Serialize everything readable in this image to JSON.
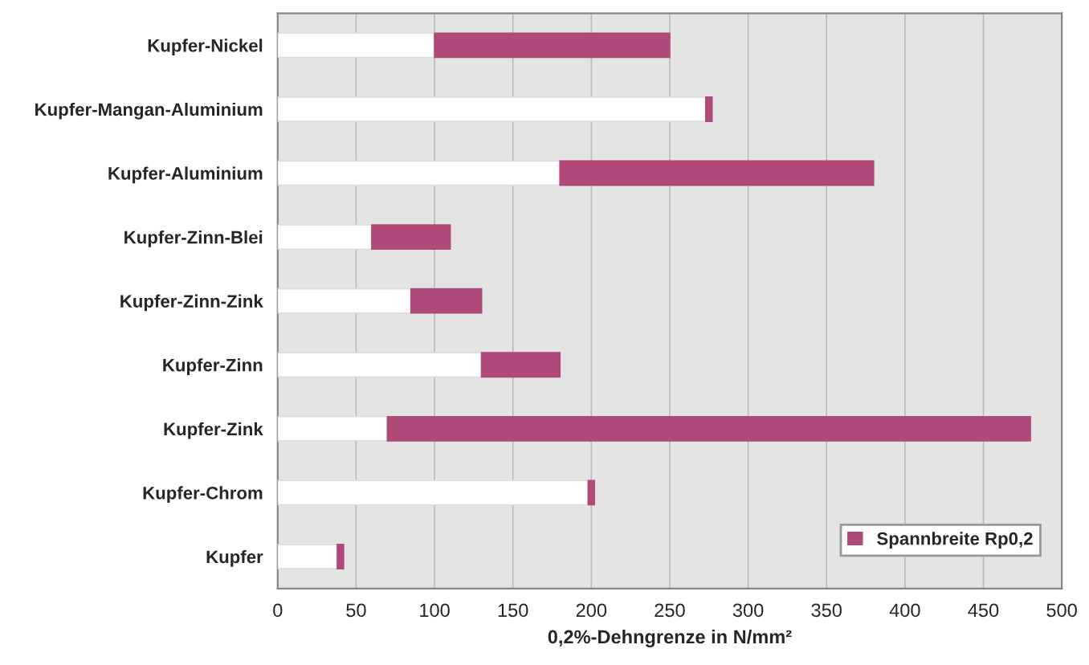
{
  "chart_data": {
    "type": "bar",
    "orientation": "horizontal",
    "stacked": true,
    "xlabel": "0,2%-Dehngrenze in N/mm²",
    "categories": [
      "Kupfer-Nickel",
      "Kupfer-Mangan-Aluminium",
      "Kupfer-Aluminium",
      "Kupfer-Zinn-Blei",
      "Kupfer-Zinn-Zink",
      "Kupfer-Zinn",
      "Kupfer-Zink",
      "Kupfer-Chrom",
      "Kupfer"
    ],
    "series": [
      {
        "color": "#ffffff",
        "values": [
          100,
          273,
          180,
          60,
          85,
          130,
          70,
          198,
          38
        ]
      },
      {
        "name": "Spannbreite Rp0,2",
        "color": "#b04a7a",
        "values": [
          150,
          4,
          200,
          50,
          45,
          50,
          410,
          4,
          4
        ]
      }
    ],
    "xlim": [
      0,
      500
    ],
    "xticks": [
      0,
      50,
      100,
      150,
      200,
      250,
      300,
      350,
      400,
      450,
      500
    ],
    "grid": "x",
    "legend": "bottom right"
  }
}
